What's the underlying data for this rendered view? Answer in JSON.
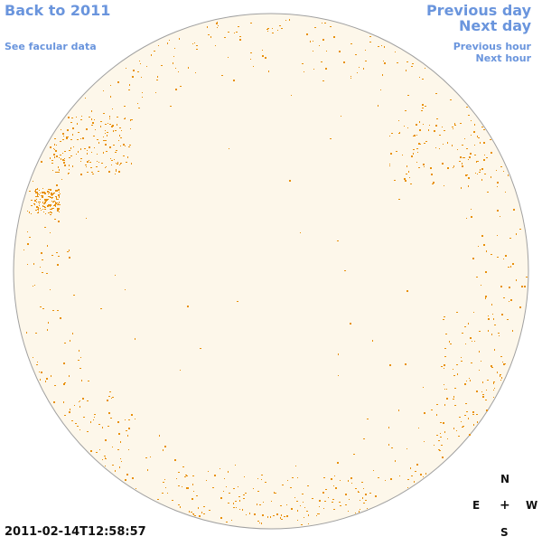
{
  "nav": {
    "back_label": "Back to 2011",
    "facular_label": "See facular data",
    "previous_day_label": "Previous day",
    "next_day_label": "Next day",
    "previous_hour_label": "Previous hour",
    "next_hour_label": "Next hour"
  },
  "compass": {
    "north": "N",
    "south": "S",
    "east": "E",
    "west": "W",
    "center": "+"
  },
  "timestamp": "2011-02-14T12:58:57",
  "colors": {
    "link": "#6a95dd",
    "disk_fill": "#fdf7ea",
    "disk_outline": "#a0a0a0",
    "facula": "#e8900a"
  }
}
